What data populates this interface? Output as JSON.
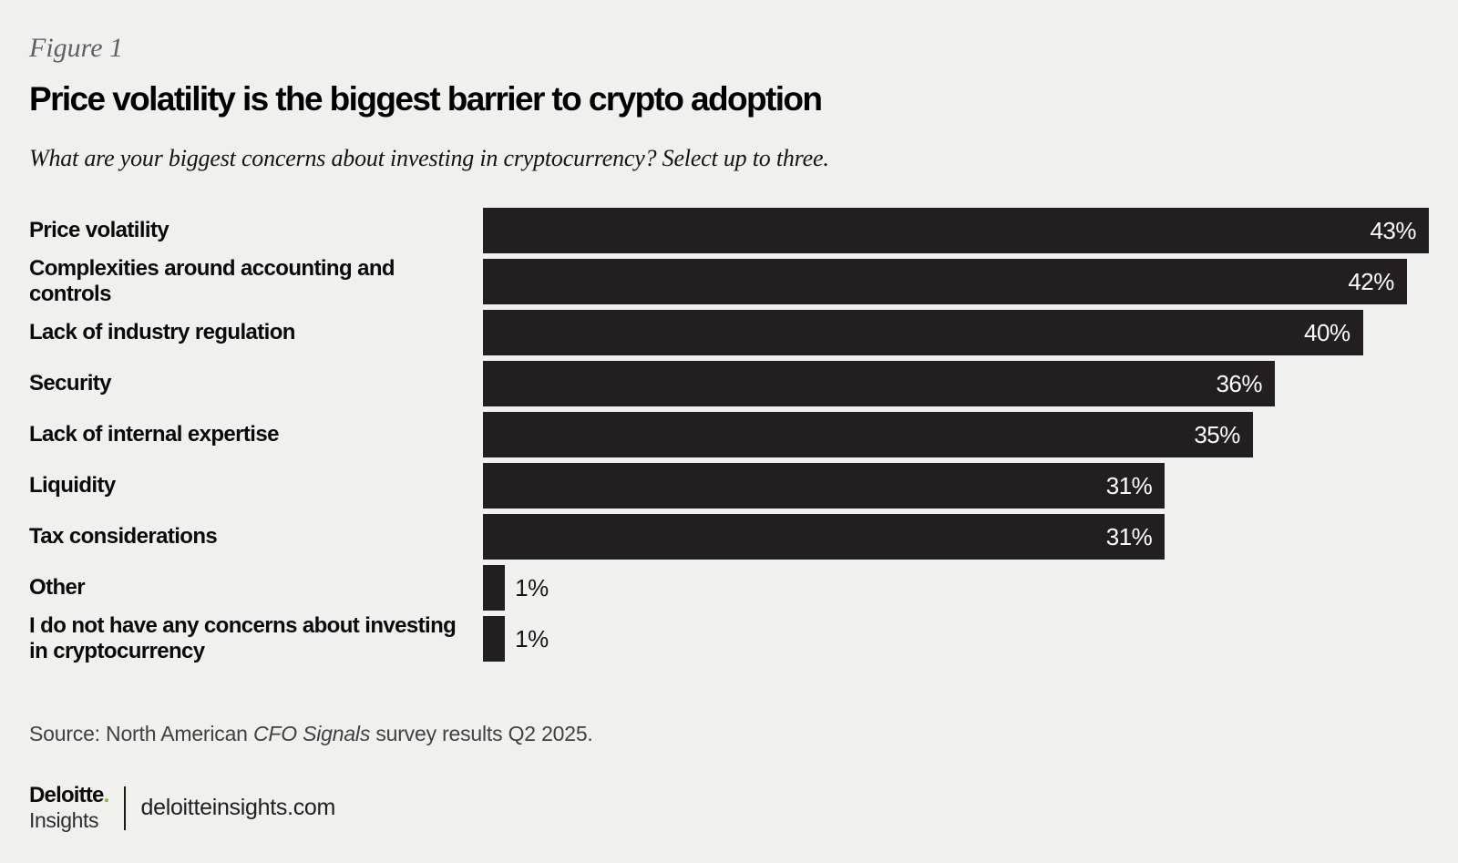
{
  "figure_label": "Figure 1",
  "chart_data": {
    "type": "bar",
    "orientation": "horizontal",
    "title": "Price volatility is the biggest barrier to crypto adoption",
    "subtitle": "What are your biggest concerns about investing in cryptocurrency? Select up to three.",
    "categories": [
      "Price volatility",
      "Complexities around accounting and controls",
      "Lack of industry regulation",
      "Security",
      "Lack of internal expertise",
      "Liquidity",
      "Tax considerations",
      "Other",
      "I do not have any concerns about investing in cryptocurrency"
    ],
    "values": [
      43,
      42,
      40,
      36,
      35,
      31,
      31,
      1,
      1
    ],
    "value_labels": [
      "43%",
      "42%",
      "40%",
      "36%",
      "35%",
      "31%",
      "31%",
      "1%",
      "1%"
    ],
    "unit": "%",
    "xlim": [
      0,
      43
    ],
    "grid": false,
    "legend": false,
    "axis_ticks_shown": false,
    "inside_label_threshold": 5,
    "bar_color": "#231F20",
    "inside_label_color": "#FFFFFF",
    "outside_label_color": "#141414"
  },
  "source": {
    "prefix": "Source: North American ",
    "italic_part": "CFO Signals",
    "suffix": " survey results Q2 2025."
  },
  "footer": {
    "brand": "Deloitte",
    "brand_dot": ".",
    "brand_sub": "Insights",
    "site": "deloitteinsights.com"
  },
  "colors": {
    "background": "#F0F0EE",
    "bar": "#231F20",
    "accent_green": "#86BC25",
    "figure_label_gray": "#5E6164",
    "source_gray": "#414141",
    "text_black": "#0A0A0A"
  }
}
